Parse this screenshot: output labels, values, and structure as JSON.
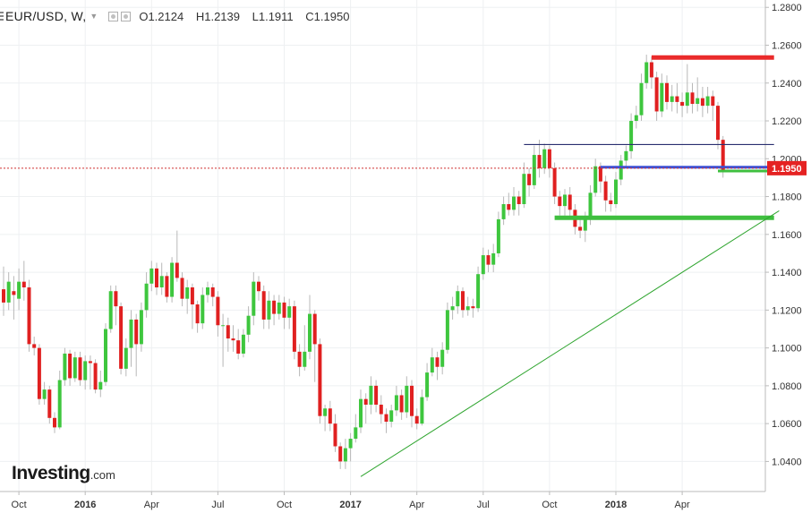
{
  "legend": {
    "symbol": "EUR/USD, W,",
    "open": "O1.2124",
    "high": "H1.2139",
    "low": "L1.1911",
    "close": "C1.1950"
  },
  "branding": {
    "name": "Investing",
    "suffix": ".com"
  },
  "colors": {
    "up": "#3ec63e",
    "down": "#e02020",
    "grid": "#eef0f2",
    "axis": "#bbbbbb",
    "support": "#3fbf3f",
    "resistance": "#ea2b2b",
    "pivot": "#3b4fd6",
    "thin_line": "#2a2f70",
    "trend": "#2fa52f",
    "price_line": "#d03030"
  },
  "chart_data": {
    "type": "candlestick",
    "title": "EUR/USD, W,",
    "ylim": [
      1.026,
      1.282
    ],
    "ylabel": "",
    "y_ticks": [
      "1.2800",
      "1.2600",
      "1.2400",
      "1.2200",
      "1.2000",
      "1.1800",
      "1.1600",
      "1.1400",
      "1.1200",
      "1.1000",
      "1.0800",
      "1.0600",
      "1.0400"
    ],
    "x_ticks": [
      {
        "label": "Oct",
        "bold": false,
        "week": 3
      },
      {
        "label": "2016",
        "bold": true,
        "week": 16
      },
      {
        "label": "Apr",
        "bold": false,
        "week": 29
      },
      {
        "label": "Jul",
        "bold": false,
        "week": 42
      },
      {
        "label": "Oct",
        "bold": false,
        "week": 55
      },
      {
        "label": "2017",
        "bold": true,
        "week": 68
      },
      {
        "label": "Apr",
        "bold": false,
        "week": 81
      },
      {
        "label": "Jul",
        "bold": false,
        "week": 94
      },
      {
        "label": "Oct",
        "bold": false,
        "week": 107
      },
      {
        "label": "2018",
        "bold": true,
        "week": 120
      },
      {
        "label": "Apr",
        "bold": false,
        "week": 133
      }
    ],
    "last_price": {
      "label": "1.1950",
      "value": 1.195
    },
    "candles": [
      [
        1.131,
        1.124,
        1.143,
        1.117
      ],
      [
        1.124,
        1.135,
        1.14,
        1.12
      ],
      [
        1.13,
        1.128,
        1.138,
        1.115
      ],
      [
        1.126,
        1.135,
        1.142,
        1.12
      ],
      [
        1.135,
        1.132,
        1.146,
        1.125
      ],
      [
        1.132,
        1.102,
        1.136,
        1.098
      ],
      [
        1.102,
        1.1,
        1.106,
        1.096
      ],
      [
        1.1,
        1.073,
        1.102,
        1.07
      ],
      [
        1.073,
        1.078,
        1.082,
        1.07
      ],
      [
        1.078,
        1.063,
        1.08,
        1.06
      ],
      [
        1.063,
        1.058,
        1.066,
        1.055
      ],
      [
        1.058,
        1.083,
        1.088,
        1.057
      ],
      [
        1.083,
        1.097,
        1.1,
        1.08
      ],
      [
        1.097,
        1.084,
        1.099,
        1.08
      ],
      [
        1.084,
        1.095,
        1.098,
        1.082
      ],
      [
        1.095,
        1.083,
        1.098,
        1.08
      ],
      [
        1.083,
        1.093,
        1.096,
        1.078
      ],
      [
        1.093,
        1.092,
        1.096,
        1.078
      ],
      [
        1.092,
        1.078,
        1.094,
        1.076
      ],
      [
        1.078,
        1.082,
        1.088,
        1.074
      ],
      [
        1.082,
        1.11,
        1.113,
        1.08
      ],
      [
        1.11,
        1.13,
        1.133,
        1.108
      ],
      [
        1.13,
        1.122,
        1.133,
        1.112
      ],
      [
        1.122,
        1.089,
        1.124,
        1.086
      ],
      [
        1.089,
        1.1,
        1.105,
        1.085
      ],
      [
        1.1,
        1.115,
        1.12,
        1.09
      ],
      [
        1.115,
        1.102,
        1.118,
        1.085
      ],
      [
        1.102,
        1.12,
        1.124,
        1.098
      ],
      [
        1.12,
        1.134,
        1.14,
        1.116
      ],
      [
        1.134,
        1.142,
        1.146,
        1.13
      ],
      [
        1.142,
        1.132,
        1.145,
        1.128
      ],
      [
        1.132,
        1.138,
        1.145,
        1.128
      ],
      [
        1.138,
        1.127,
        1.14,
        1.124
      ],
      [
        1.127,
        1.145,
        1.148,
        1.124
      ],
      [
        1.145,
        1.137,
        1.162,
        1.135
      ],
      [
        1.137,
        1.126,
        1.14,
        1.122
      ],
      [
        1.126,
        1.132,
        1.136,
        1.118
      ],
      [
        1.132,
        1.123,
        1.134,
        1.11
      ],
      [
        1.123,
        1.113,
        1.125,
        1.108
      ],
      [
        1.113,
        1.128,
        1.132,
        1.11
      ],
      [
        1.128,
        1.132,
        1.135,
        1.124
      ],
      [
        1.132,
        1.127,
        1.134,
        1.122
      ],
      [
        1.127,
        1.112,
        1.13,
        1.106
      ],
      [
        1.112,
        1.112,
        1.118,
        1.09
      ],
      [
        1.112,
        1.105,
        1.116,
        1.098
      ],
      [
        1.105,
        1.104,
        1.112,
        1.098
      ],
      [
        1.104,
        1.097,
        1.11,
        1.094
      ],
      [
        1.097,
        1.107,
        1.11,
        1.095
      ],
      [
        1.107,
        1.117,
        1.122,
        1.103
      ],
      [
        1.117,
        1.135,
        1.14,
        1.112
      ],
      [
        1.135,
        1.13,
        1.138,
        1.125
      ],
      [
        1.13,
        1.115,
        1.133,
        1.11
      ],
      [
        1.115,
        1.125,
        1.13,
        1.11
      ],
      [
        1.125,
        1.118,
        1.128,
        1.112
      ],
      [
        1.118,
        1.124,
        1.128,
        1.115
      ],
      [
        1.124,
        1.116,
        1.127,
        1.11
      ],
      [
        1.116,
        1.122,
        1.126,
        1.11
      ],
      [
        1.122,
        1.098,
        1.125,
        1.094
      ],
      [
        1.098,
        1.09,
        1.102,
        1.085
      ],
      [
        1.09,
        1.098,
        1.112,
        1.088
      ],
      [
        1.098,
        1.118,
        1.128,
        1.094
      ],
      [
        1.118,
        1.102,
        1.12,
        1.082
      ],
      [
        1.102,
        1.064,
        1.105,
        1.06
      ],
      [
        1.064,
        1.068,
        1.07,
        1.056
      ],
      [
        1.068,
        1.06,
        1.072,
        1.056
      ],
      [
        1.06,
        1.048,
        1.065,
        1.045
      ],
      [
        1.048,
        1.04,
        1.05,
        1.036
      ],
      [
        1.04,
        1.047,
        1.052,
        1.036
      ],
      [
        1.047,
        1.052,
        1.055,
        1.04
      ],
      [
        1.052,
        1.058,
        1.065,
        1.05
      ],
      [
        1.058,
        1.073,
        1.078,
        1.055
      ],
      [
        1.073,
        1.07,
        1.076,
        1.06
      ],
      [
        1.07,
        1.08,
        1.085,
        1.065
      ],
      [
        1.08,
        1.07,
        1.083,
        1.066
      ],
      [
        1.07,
        1.065,
        1.075,
        1.06
      ],
      [
        1.065,
        1.061,
        1.068,
        1.055
      ],
      [
        1.061,
        1.067,
        1.07,
        1.058
      ],
      [
        1.067,
        1.075,
        1.08,
        1.064
      ],
      [
        1.075,
        1.066,
        1.078,
        1.062
      ],
      [
        1.066,
        1.08,
        1.085,
        1.063
      ],
      [
        1.08,
        1.064,
        1.083,
        1.058
      ],
      [
        1.064,
        1.06,
        1.068,
        1.057
      ],
      [
        1.06,
        1.074,
        1.078,
        1.059
      ],
      [
        1.074,
        1.087,
        1.092,
        1.072
      ],
      [
        1.087,
        1.095,
        1.1,
        1.085
      ],
      [
        1.095,
        1.09,
        1.098,
        1.083
      ],
      [
        1.09,
        1.099,
        1.103,
        1.086
      ],
      [
        1.099,
        1.12,
        1.124,
        1.097
      ],
      [
        1.12,
        1.122,
        1.127,
        1.115
      ],
      [
        1.122,
        1.13,
        1.133,
        1.118
      ],
      [
        1.13,
        1.12,
        1.132,
        1.116
      ],
      [
        1.12,
        1.122,
        1.127,
        1.117
      ],
      [
        1.122,
        1.121,
        1.126,
        1.116
      ],
      [
        1.121,
        1.139,
        1.143,
        1.119
      ],
      [
        1.139,
        1.149,
        1.153,
        1.136
      ],
      [
        1.149,
        1.144,
        1.152,
        1.14
      ],
      [
        1.144,
        1.15,
        1.155,
        1.14
      ],
      [
        1.15,
        1.168,
        1.172,
        1.148
      ],
      [
        1.168,
        1.176,
        1.18,
        1.165
      ],
      [
        1.176,
        1.173,
        1.182,
        1.17
      ],
      [
        1.173,
        1.18,
        1.185,
        1.17
      ],
      [
        1.18,
        1.176,
        1.183,
        1.17
      ],
      [
        1.176,
        1.192,
        1.198,
        1.174
      ],
      [
        1.192,
        1.186,
        1.195,
        1.18
      ],
      [
        1.186,
        1.202,
        1.207,
        1.184
      ],
      [
        1.202,
        1.195,
        1.21,
        1.19
      ],
      [
        1.195,
        1.205,
        1.208,
        1.192
      ],
      [
        1.205,
        1.195,
        1.207,
        1.19
      ],
      [
        1.195,
        1.18,
        1.198,
        1.176
      ],
      [
        1.18,
        1.175,
        1.183,
        1.17
      ],
      [
        1.175,
        1.181,
        1.184,
        1.17
      ],
      [
        1.181,
        1.173,
        1.185,
        1.168
      ],
      [
        1.173,
        1.164,
        1.176,
        1.16
      ],
      [
        1.164,
        1.162,
        1.168,
        1.158
      ],
      [
        1.162,
        1.168,
        1.172,
        1.156
      ],
      [
        1.168,
        1.182,
        1.186,
        1.165
      ],
      [
        1.182,
        1.196,
        1.2,
        1.18
      ],
      [
        1.196,
        1.188,
        1.198,
        1.182
      ],
      [
        1.188,
        1.178,
        1.191,
        1.172
      ],
      [
        1.178,
        1.176,
        1.182,
        1.172
      ],
      [
        1.176,
        1.189,
        1.193,
        1.174
      ],
      [
        1.189,
        1.199,
        1.202,
        1.186
      ],
      [
        1.199,
        1.204,
        1.207,
        1.196
      ],
      [
        1.204,
        1.22,
        1.224,
        1.2
      ],
      [
        1.22,
        1.223,
        1.228,
        1.216
      ],
      [
        1.223,
        1.24,
        1.245,
        1.22
      ],
      [
        1.24,
        1.251,
        1.255,
        1.237
      ],
      [
        1.251,
        1.243,
        1.254,
        1.237
      ],
      [
        1.243,
        1.225,
        1.246,
        1.22
      ],
      [
        1.225,
        1.24,
        1.245,
        1.222
      ],
      [
        1.24,
        1.23,
        1.244,
        1.226
      ],
      [
        1.23,
        1.233,
        1.239,
        1.225
      ],
      [
        1.233,
        1.23,
        1.24,
        1.224
      ],
      [
        1.23,
        1.228,
        1.235,
        1.222
      ],
      [
        1.228,
        1.235,
        1.25,
        1.224
      ],
      [
        1.235,
        1.229,
        1.24,
        1.224
      ],
      [
        1.229,
        1.232,
        1.243,
        1.225
      ],
      [
        1.232,
        1.228,
        1.238,
        1.222
      ],
      [
        1.228,
        1.233,
        1.238,
        1.224
      ],
      [
        1.233,
        1.228,
        1.236,
        1.22
      ],
      [
        1.228,
        1.21,
        1.23,
        1.205
      ],
      [
        1.21,
        1.194,
        1.212,
        1.19
      ]
    ],
    "annotations": [
      {
        "name": "resistance-line",
        "color": "#ea2b2b",
        "width": 5,
        "from": [
          127,
          1.2535
        ],
        "to": [
          151,
          1.2535
        ]
      },
      {
        "name": "thin-pivot-line",
        "color": "#2a2f70",
        "width": 1.2,
        "from": [
          102,
          1.2075
        ],
        "to": [
          151,
          1.2075
        ]
      },
      {
        "name": "blue-support-line",
        "color": "#3b4fd6",
        "width": 3,
        "from": [
          117,
          1.1955
        ],
        "to": [
          150,
          1.1955
        ]
      },
      {
        "name": "short-green-line",
        "color": "#3fbf3f",
        "width": 3,
        "from": [
          140,
          1.1935
        ],
        "to": [
          151,
          1.1935
        ]
      },
      {
        "name": "green-support-line",
        "color": "#3fbf3f",
        "width": 5,
        "from": [
          108,
          1.1688
        ],
        "to": [
          151,
          1.1688
        ]
      },
      {
        "name": "uptrend-line",
        "color": "#2fa52f",
        "width": 1,
        "from": [
          70,
          1.032
        ],
        "to": [
          152,
          1.1725
        ]
      }
    ]
  }
}
